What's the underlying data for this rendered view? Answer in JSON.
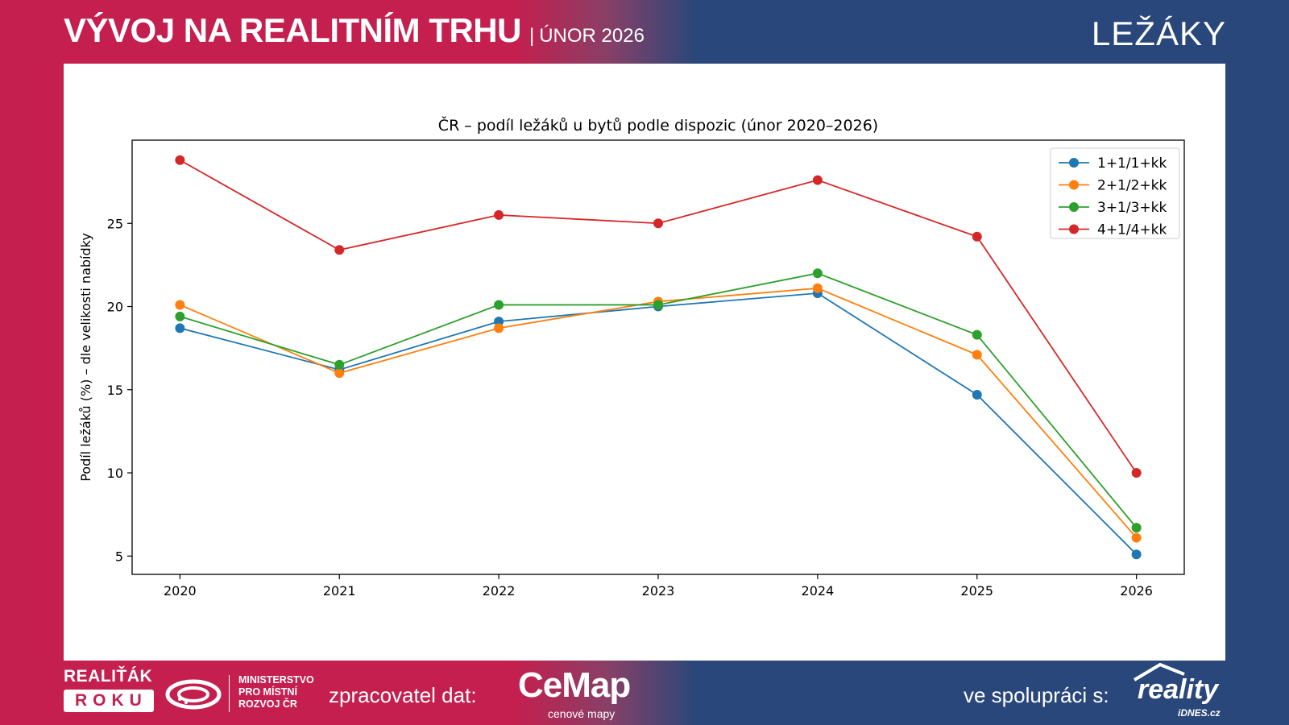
{
  "header": {
    "title": "VÝVOJ NA REALITNÍM TRHU",
    "separator": "|",
    "subtitle": "ÚNOR 2026",
    "section": "LEŽÁKY"
  },
  "footer": {
    "realitak_line1": "REALIŤÁK",
    "realitak_line2": "ROKU",
    "ministry_line1": "MINISTERSTVO",
    "ministry_line2": "PRO MÍSTNÍ",
    "ministry_line3": "ROZVOJ ČR",
    "data_processor_label": "zpracovatel dat:",
    "cemap_name": "CeMap",
    "cemap_tagline": "cenové mapy",
    "cooperation_label": "ve spolupráci s:",
    "partner_name": "reality",
    "partner_sub": "iDNES.cz"
  },
  "colors": {
    "brand_red": "#c41f4f",
    "brand_blue": "#29477a"
  },
  "chart_data": {
    "type": "line",
    "title": "ČR – podíl ležáků u bytů podle dispozic (únor 2020–2026)",
    "xlabel": "",
    "ylabel": "Podíl ležáků (%) – dle velikosti nabídky",
    "x": [
      2020,
      2021,
      2022,
      2023,
      2024,
      2025,
      2026
    ],
    "xlim": [
      2019.7,
      2026.3
    ],
    "ylim": [
      3.9,
      30.0
    ],
    "yticks": [
      5,
      10,
      15,
      20,
      25
    ],
    "grid": false,
    "legend_position": "top-right",
    "series": [
      {
        "name": "1+1/1+kk",
        "color": "#1f77b4",
        "values": [
          18.7,
          16.2,
          19.1,
          20.0,
          20.8,
          14.7,
          5.1
        ]
      },
      {
        "name": "2+1/2+kk",
        "color": "#ff7f0e",
        "values": [
          20.1,
          16.0,
          18.7,
          20.3,
          21.1,
          17.1,
          6.1
        ]
      },
      {
        "name": "3+1/3+kk",
        "color": "#2ca02c",
        "values": [
          19.4,
          16.5,
          20.1,
          20.1,
          22.0,
          18.3,
          6.7
        ]
      },
      {
        "name": "4+1/4+kk",
        "color": "#d62728",
        "values": [
          28.8,
          23.4,
          25.5,
          25.0,
          27.6,
          24.2,
          10.0
        ]
      }
    ]
  }
}
